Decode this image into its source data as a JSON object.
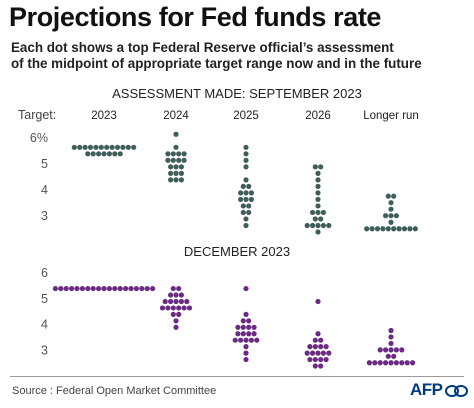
{
  "title": "Projections for Fed funds rate",
  "subtitle_line1": "Each dot shows a top Federal Reserve official’s assessment",
  "subtitle_line2": "of the midpoint of appropriate target range now and in the future",
  "source": "Source : Federal Open Market Committee",
  "logo_text": "AFP",
  "colors": {
    "panel1": "#3f5e5a",
    "panel2": "#6b2a83",
    "axis": "#444444",
    "grid": "#dddddd"
  },
  "chart_data": [
    {
      "type": "scatter",
      "title": "ASSESSMENT MADE: SEPTEMBER 2023",
      "ylabel": "Target:",
      "y_ticks": [
        3,
        4,
        5,
        6
      ],
      "y_tick_labels": [
        "3",
        "4",
        "5",
        "6%"
      ],
      "ylim": [
        2.375,
        6.25
      ],
      "categories": [
        "2023",
        "2024",
        "2025",
        "2026",
        "Longer run"
      ],
      "series": [
        {
          "category": "2023",
          "points": [
            {
              "y": 5.625,
              "count": 12
            },
            {
              "y": 5.375,
              "count": 7
            }
          ]
        },
        {
          "category": "2024",
          "points": [
            {
              "y": 6.125,
              "count": 1
            },
            {
              "y": 5.625,
              "count": 1
            },
            {
              "y": 5.375,
              "count": 4
            },
            {
              "y": 5.125,
              "count": 4
            },
            {
              "y": 4.875,
              "count": 3
            },
            {
              "y": 4.625,
              "count": 3
            },
            {
              "y": 4.375,
              "count": 3
            }
          ]
        },
        {
          "category": "2025",
          "points": [
            {
              "y": 5.625,
              "count": 1
            },
            {
              "y": 5.375,
              "count": 1
            },
            {
              "y": 5.125,
              "count": 1
            },
            {
              "y": 4.875,
              "count": 1
            },
            {
              "y": 4.375,
              "count": 1
            },
            {
              "y": 4.125,
              "count": 2
            },
            {
              "y": 3.875,
              "count": 3
            },
            {
              "y": 3.625,
              "count": 3
            },
            {
              "y": 3.375,
              "count": 2
            },
            {
              "y": 3.125,
              "count": 2
            },
            {
              "y": 2.875,
              "count": 1
            },
            {
              "y": 2.625,
              "count": 1
            }
          ]
        },
        {
          "category": "2026",
          "points": [
            {
              "y": 4.875,
              "count": 2
            },
            {
              "y": 4.625,
              "count": 1
            },
            {
              "y": 4.375,
              "count": 1
            },
            {
              "y": 4.125,
              "count": 1
            },
            {
              "y": 3.875,
              "count": 1
            },
            {
              "y": 3.625,
              "count": 1
            },
            {
              "y": 3.375,
              "count": 1
            },
            {
              "y": 3.125,
              "count": 3
            },
            {
              "y": 2.875,
              "count": 2
            },
            {
              "y": 2.625,
              "count": 5
            },
            {
              "y": 2.375,
              "count": 1
            }
          ]
        },
        {
          "category": "Longer run",
          "points": [
            {
              "y": 3.75,
              "count": 2
            },
            {
              "y": 3.5,
              "count": 1
            },
            {
              "y": 3.25,
              "count": 1
            },
            {
              "y": 3.0,
              "count": 3
            },
            {
              "y": 2.75,
              "count": 1
            },
            {
              "y": 2.5,
              "count": 10
            }
          ]
        }
      ]
    },
    {
      "type": "scatter",
      "title": "DECEMBER 2023",
      "y_ticks": [
        3,
        4,
        5,
        6
      ],
      "y_tick_labels": [
        "3",
        "4",
        "5",
        "6"
      ],
      "ylim": [
        2.375,
        6.25
      ],
      "categories": [
        "2023",
        "2024",
        "2025",
        "2026",
        "Longer run"
      ],
      "series": [
        {
          "category": "2023",
          "points": [
            {
              "y": 5.375,
              "count": 19
            }
          ]
        },
        {
          "category": "2024",
          "points": [
            {
              "y": 5.375,
              "count": 2
            },
            {
              "y": 5.125,
              "count": 3
            },
            {
              "y": 4.875,
              "count": 5
            },
            {
              "y": 4.625,
              "count": 6
            },
            {
              "y": 4.375,
              "count": 2
            },
            {
              "y": 4.125,
              "count": 1
            },
            {
              "y": 3.875,
              "count": 1
            }
          ]
        },
        {
          "category": "2025",
          "points": [
            {
              "y": 5.375,
              "count": 1
            },
            {
              "y": 4.375,
              "count": 1
            },
            {
              "y": 4.125,
              "count": 2
            },
            {
              "y": 3.875,
              "count": 4
            },
            {
              "y": 3.625,
              "count": 4
            },
            {
              "y": 3.375,
              "count": 5
            },
            {
              "y": 3.125,
              "count": 1
            },
            {
              "y": 2.875,
              "count": 1
            },
            {
              "y": 2.625,
              "count": 1
            }
          ]
        },
        {
          "category": "2026",
          "points": [
            {
              "y": 4.875,
              "count": 1
            },
            {
              "y": 3.625,
              "count": 1
            },
            {
              "y": 3.375,
              "count": 2
            },
            {
              "y": 3.125,
              "count": 4
            },
            {
              "y": 2.875,
              "count": 5
            },
            {
              "y": 2.625,
              "count": 4
            },
            {
              "y": 2.375,
              "count": 2
            }
          ]
        },
        {
          "category": "Longer run",
          "points": [
            {
              "y": 3.75,
              "count": 1
            },
            {
              "y": 3.5,
              "count": 1
            },
            {
              "y": 3.25,
              "count": 1
            },
            {
              "y": 3.0,
              "count": 5
            },
            {
              "y": 2.75,
              "count": 2
            },
            {
              "y": 2.5,
              "count": 9
            }
          ]
        }
      ]
    }
  ]
}
